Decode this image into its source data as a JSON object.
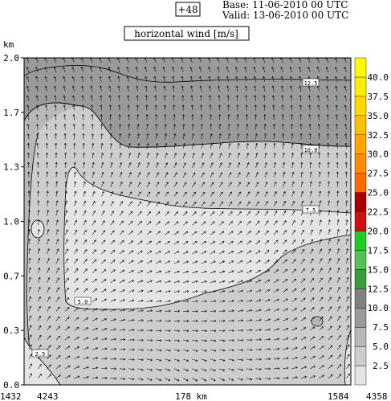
{
  "header": {
    "lead": "+48",
    "base": "Base: 11-06-2010  00 UTC",
    "valid": "Valid: 13-06-2010  00 UTC",
    "title": "horizontal wind [m/s]"
  },
  "chart_data": {
    "type": "heatmap",
    "title": "horizontal wind [m/s]",
    "ylabel": "km",
    "ylim": [
      0.0,
      2.0
    ],
    "y_ticks": [
      "0.0",
      "0.3",
      "0.7",
      "1.0",
      "1.3",
      "1.7",
      "2.0"
    ],
    "x_labels": {
      "left_outer": "1432",
      "left_inner": "4243",
      "center": "178 km",
      "right_inner": "1584",
      "right_outer": "4358"
    },
    "colorbar": {
      "levels": [
        "2.5",
        "5.0",
        "7.5",
        "10.0",
        "12.5",
        "15.0",
        "17.5",
        "20.0",
        "22.5",
        "25.0",
        "27.5",
        "30.0",
        "32.5",
        "35.0",
        "37.5",
        "40.0"
      ],
      "colors": [
        "#e4e4e4",
        "#cdcdcd",
        "#b8b8b8",
        "#9a9a9a",
        "#808080",
        "#3a9c3a",
        "#55c055",
        "#22cc22",
        "#cc1111",
        "#a80000",
        "#ff6a00",
        "#ff8c00",
        "#ffa500",
        "#ffc000",
        "#ffd800",
        "#ffee00",
        "#fffa00"
      ]
    },
    "contour_labels": [
      "2.5",
      "5.0",
      "7.5",
      "10.0",
      "12.5"
    ],
    "bands": [
      {
        "range": "10.0-12.5",
        "color": "#9a9a9a"
      },
      {
        "range": "7.5-10.0",
        "color": "#b8b8b8"
      },
      {
        "range": "5.0-7.5",
        "color": "#cdcdcd"
      },
      {
        "range": "2.5-5.0",
        "color": "#e4e4e4"
      }
    ]
  }
}
